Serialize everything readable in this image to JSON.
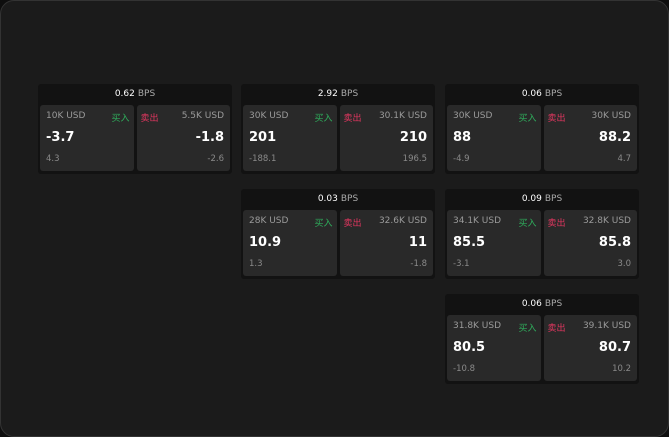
{
  "cards": [
    {
      "bps": "0.62",
      "unit": "BPS",
      "buy": {
        "label": "买入",
        "size": "10K USD",
        "price": "-3.7",
        "diff": "4.3"
      },
      "sell": {
        "label": "卖出",
        "size": "5.5K USD",
        "price": "-1.8",
        "diff": "-2.6"
      }
    },
    {
      "bps": "2.92",
      "unit": "BPS",
      "buy": {
        "label": "买入",
        "size": "30K USD",
        "price": "201",
        "diff": "-188.1"
      },
      "sell": {
        "label": "卖出",
        "size": "30.1K USD",
        "price": "210",
        "diff": "196.5"
      }
    },
    {
      "bps": "0.06",
      "unit": "BPS",
      "buy": {
        "label": "买入",
        "size": "30K USD",
        "price": "88",
        "diff": "-4.9"
      },
      "sell": {
        "label": "卖出",
        "size": "30K USD",
        "price": "88.2",
        "diff": "4.7"
      }
    },
    {
      "bps": "0.03",
      "unit": "BPS",
      "buy": {
        "label": "买入",
        "size": "28K USD",
        "price": "10.9",
        "diff": "1.3"
      },
      "sell": {
        "label": "卖出",
        "size": "32.6K USD",
        "price": "11",
        "diff": "-1.8"
      }
    },
    {
      "bps": "0.09",
      "unit": "BPS",
      "buy": {
        "label": "买入",
        "size": "34.1K USD",
        "price": "85.5",
        "diff": "-3.1"
      },
      "sell": {
        "label": "卖出",
        "size": "32.8K USD",
        "price": "85.8",
        "diff": "3.0"
      }
    },
    {
      "bps": "0.06",
      "unit": "BPS",
      "buy": {
        "label": "买入",
        "size": "31.8K USD",
        "price": "80.5",
        "diff": "-10.8"
      },
      "sell": {
        "label": "卖出",
        "size": "39.1K USD",
        "price": "80.7",
        "diff": "10.2"
      }
    }
  ],
  "colors": {
    "buy": "#2fae5c",
    "sell": "#e0365f"
  }
}
